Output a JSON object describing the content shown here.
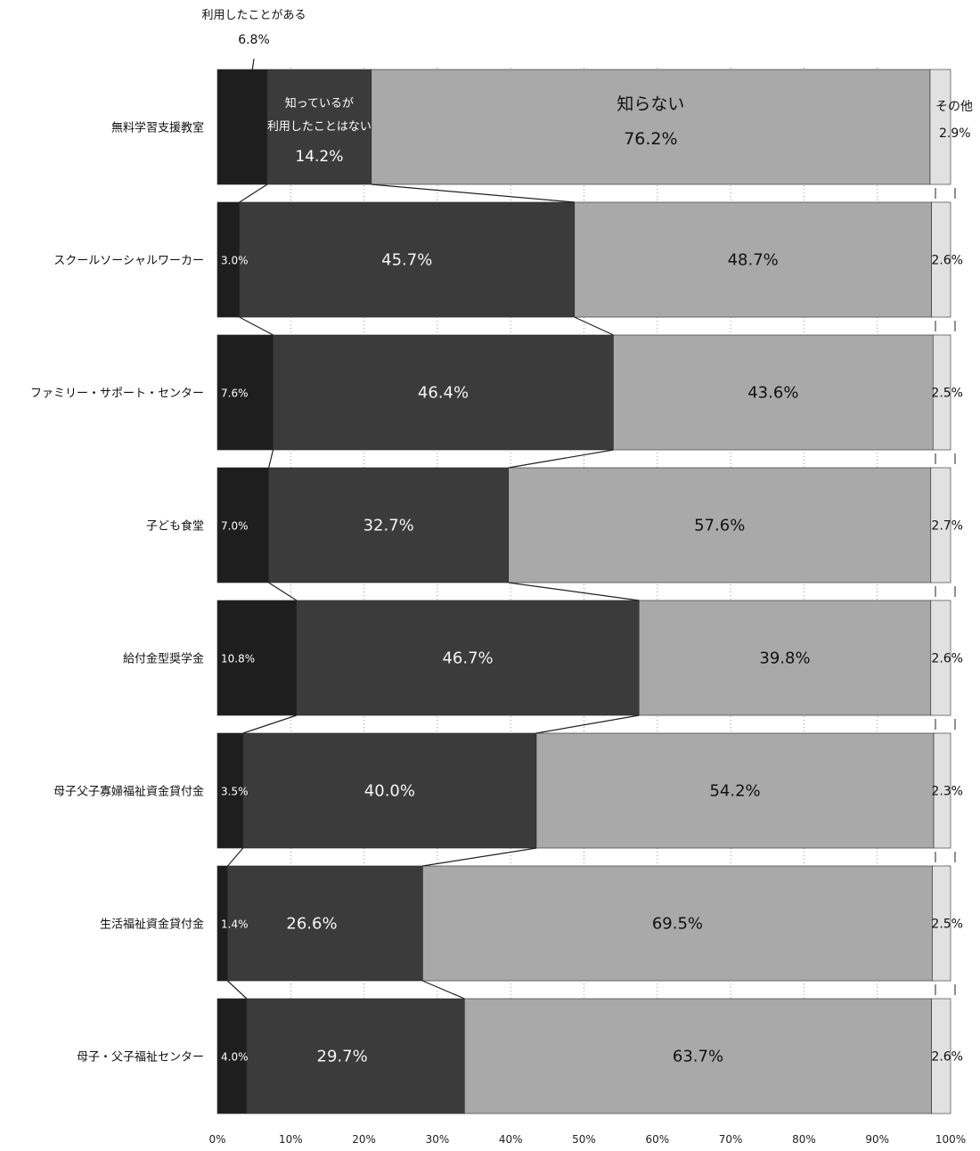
{
  "chart_data": {
    "type": "bar",
    "stacked": true,
    "orientation": "horizontal",
    "percent_axis": true,
    "xlim": [
      0,
      100
    ],
    "x_ticks": [
      "0%",
      "10%",
      "20%",
      "30%",
      "40%",
      "50%",
      "60%",
      "70%",
      "80%",
      "90%",
      "100%"
    ],
    "grid": true,
    "legend": "inline-labels",
    "categories": [
      "無料学習支援教室",
      "スクールソーシャルワーカー",
      "ファミリー・サポート・センター",
      "子ども食堂",
      "給付金型奨学金",
      "母子父子寡婦福祉資金貸付金",
      "生活福祉資金貸付金",
      "母子・父子福祉センター"
    ],
    "series": [
      {
        "name": "利用したことがある",
        "color": "#1e1e1e",
        "values": [
          6.8,
          3.0,
          7.6,
          7.0,
          10.8,
          3.5,
          1.4,
          4.0
        ],
        "labels": [
          "6.8%",
          "3.0%",
          "7.6%",
          "7.0%",
          "10.8%",
          "3.5%",
          "1.4%",
          "4.0%"
        ]
      },
      {
        "name": "知っているが利用したことはない",
        "color": "#3b3b3b",
        "values": [
          14.2,
          45.7,
          46.4,
          32.7,
          46.7,
          40.0,
          26.6,
          29.7
        ],
        "labels": [
          "14.2%",
          "45.7%",
          "46.4%",
          "32.7%",
          "46.7%",
          "40.0%",
          "26.6%",
          "29.7%"
        ]
      },
      {
        "name": "知らない",
        "color": "#a9a9a9",
        "values": [
          76.2,
          48.7,
          43.6,
          57.6,
          39.8,
          54.2,
          69.5,
          63.7
        ],
        "labels": [
          "76.2%",
          "48.7%",
          "43.6%",
          "57.6%",
          "39.8%",
          "54.2%",
          "69.5%",
          "63.7%"
        ]
      },
      {
        "name": "その他",
        "color": "#e1e1e1",
        "values": [
          2.9,
          2.6,
          2.5,
          2.7,
          2.6,
          2.3,
          2.5,
          2.6
        ],
        "labels": [
          "2.9%",
          "2.6%",
          "2.5%",
          "2.7%",
          "2.6%",
          "2.3%",
          "2.5%",
          "2.6%"
        ]
      }
    ],
    "legend_text": {
      "used_line": "利用したことがある",
      "used_value": "6.8%",
      "known_line1": "知っているが",
      "known_line2": "利用したことはない",
      "known_value": "14.2%",
      "unknown_line": "知らない",
      "unknown_value": "76.2%",
      "other_line": "その他",
      "other_value": "2.9%"
    }
  }
}
